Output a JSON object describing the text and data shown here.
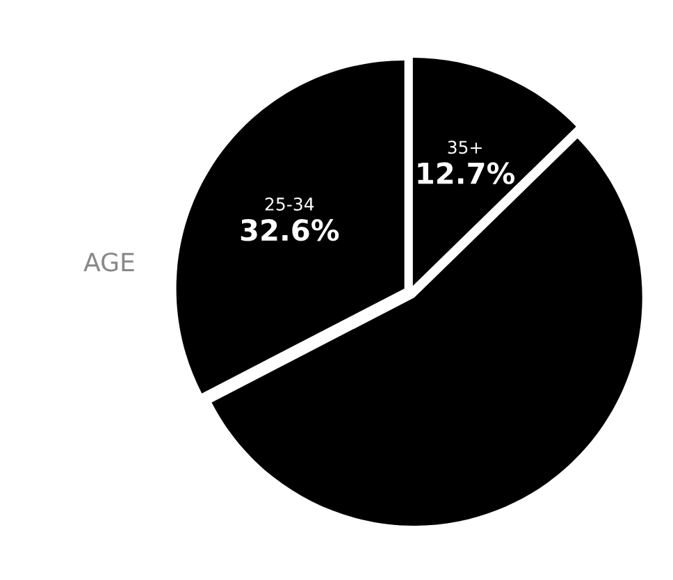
{
  "chart_data": {
    "type": "pie",
    "title": "AGE",
    "categories": [
      "35+",
      null,
      "25-34"
    ],
    "values": [
      12.7,
      54.7,
      32.6
    ],
    "value_labels": [
      "12.7%",
      null,
      "32.6%"
    ],
    "colors": [
      "#000000",
      "#000000",
      "#000000"
    ]
  }
}
